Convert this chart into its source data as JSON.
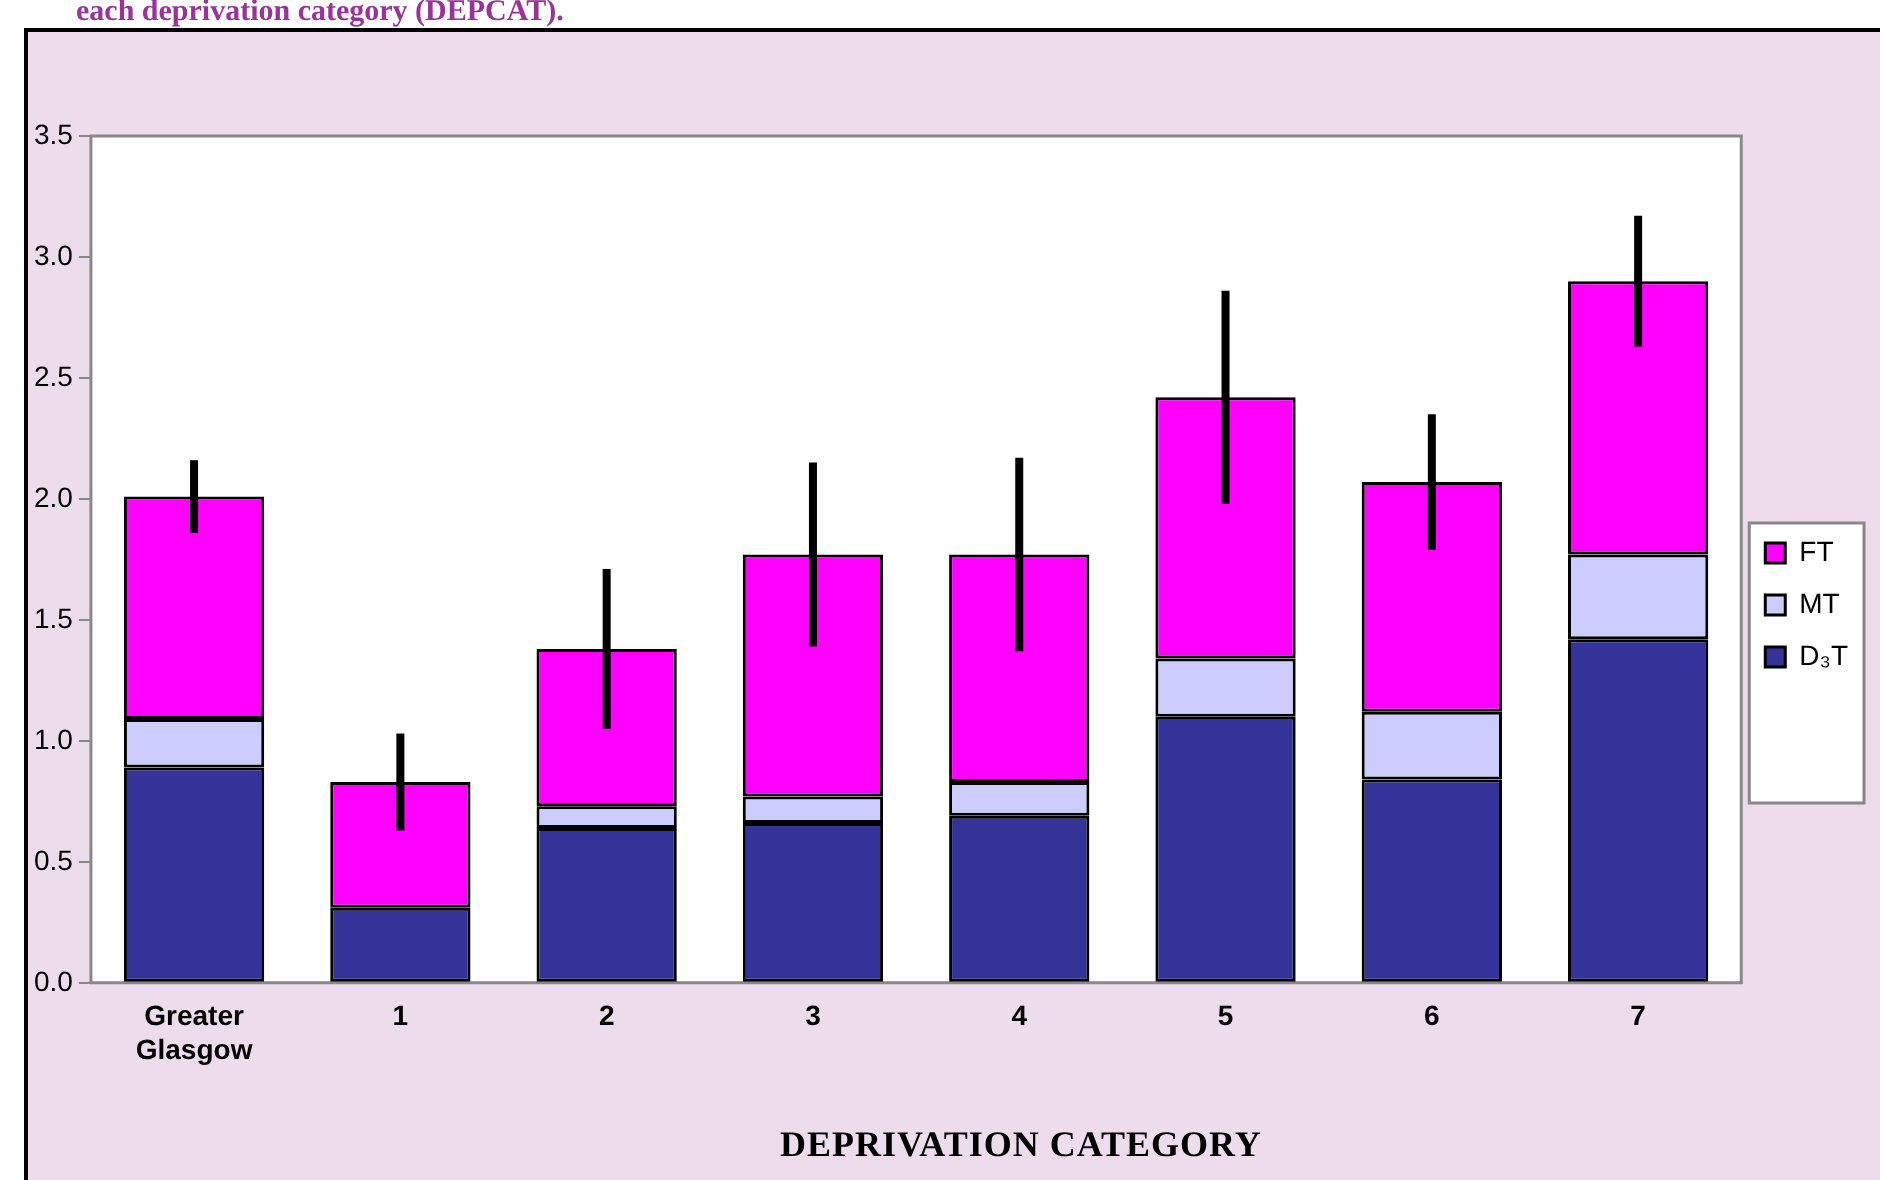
{
  "chart_data": {
    "type": "bar",
    "title": "each deprivation category (DEPCAT).",
    "xlabel": "DEPRIVATION CATEGORY",
    "categories": [
      "Greater Glasgow",
      "1",
      "2",
      "3",
      "4",
      "5",
      "6",
      "7"
    ],
    "stacked": true,
    "ylim": [
      0,
      3.5
    ],
    "yticks": [
      {
        "value": 0,
        "label": "0.0"
      },
      {
        "value": 0.5,
        "label": "0.5"
      },
      {
        "value": 1,
        "label": "1.0"
      },
      {
        "value": 1.5,
        "label": "1.5"
      },
      {
        "value": 2,
        "label": "2.0"
      },
      {
        "value": 2.5,
        "label": "2.5"
      },
      {
        "value": 3,
        "label": "3.0"
      },
      {
        "value": 3.5,
        "label": "3.5"
      }
    ],
    "grid": false,
    "legend": "right",
    "series": [
      {
        "name": "D₃T",
        "color": "#333399",
        "values": [
          0.89,
          0.31,
          0.64,
          0.66,
          0.69,
          1.1,
          0.84,
          1.42
        ]
      },
      {
        "name": "MT",
        "color": "#ccccff",
        "values": [
          0.2,
          0,
          0.09,
          0.11,
          0.14,
          0.24,
          0.28,
          0.35
        ]
      },
      {
        "name": "FT",
        "color": "#ff00ff",
        "values": [
          0.92,
          0.52,
          0.65,
          1.0,
          0.94,
          1.08,
          0.95,
          1.13
        ],
        "errors": [
          0.15,
          0.2,
          0.33,
          0.38,
          0.4,
          0.44,
          0.28,
          0.27
        ]
      }
    ]
  }
}
